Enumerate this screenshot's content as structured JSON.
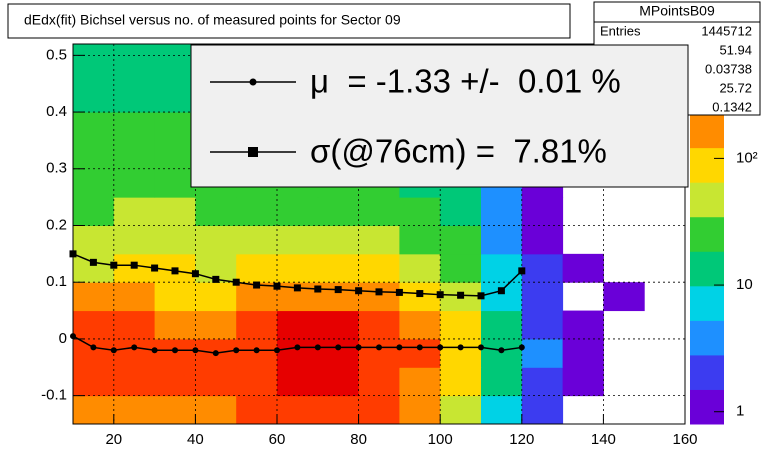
{
  "chart_data": {
    "type": "heatmap",
    "title": "dEdx(fit) Bichsel versus no. of measured points for Sector 09",
    "xlim": [
      10,
      160
    ],
    "ylim": [
      -0.15,
      0.52
    ],
    "xticks": [
      20,
      40,
      60,
      80,
      100,
      120,
      140,
      160
    ],
    "yticks": [
      -0.1,
      0,
      0.1,
      0.2,
      0.3,
      0.4,
      0.5
    ],
    "grid": true,
    "log_z": true,
    "zlim": [
      0.8,
      800
    ],
    "zticks": [
      1,
      10,
      {
        "value": 100,
        "label": "10²"
      }
    ],
    "palette": [
      "#6a00d8",
      "#3c3cf0",
      "#1e90ff",
      "#00d2e6",
      "#00c878",
      "#32cd32",
      "#c8e632",
      "#ffd700",
      "#ff8c00",
      "#ff3c00",
      "#e60000"
    ],
    "xbins": [
      10,
      20,
      30,
      40,
      50,
      60,
      70,
      80,
      90,
      100,
      110,
      120,
      130,
      140,
      150,
      160
    ],
    "ybins": [
      -0.15,
      -0.1,
      -0.05,
      0,
      0.05,
      0.1,
      0.15,
      0.2,
      0.25,
      0.3,
      0.35,
      0.4,
      0.45,
      0.52
    ],
    "z": [
      [
        150,
        200,
        180,
        200,
        250,
        350,
        350,
        250,
        150,
        60,
        8,
        2,
        0,
        0,
        0
      ],
      [
        250,
        300,
        250,
        250,
        350,
        500,
        500,
        350,
        200,
        80,
        10,
        2,
        1,
        0,
        0
      ],
      [
        300,
        300,
        250,
        250,
        400,
        600,
        600,
        400,
        250,
        90,
        12,
        3,
        1,
        0,
        0
      ],
      [
        250,
        250,
        200,
        200,
        300,
        450,
        450,
        300,
        200,
        70,
        10,
        2,
        1,
        0,
        0
      ],
      [
        150,
        150,
        120,
        120,
        150,
        200,
        200,
        150,
        100,
        50,
        8,
        2,
        0,
        1,
        0
      ],
      [
        60,
        80,
        70,
        60,
        70,
        80,
        80,
        70,
        50,
        30,
        6,
        2,
        1,
        0,
        0
      ],
      [
        40,
        50,
        50,
        40,
        40,
        40,
        40,
        35,
        30,
        20,
        5,
        1,
        0,
        0,
        0
      ],
      [
        30,
        40,
        40,
        30,
        30,
        30,
        30,
        25,
        20,
        12,
        4,
        1,
        0,
        0,
        0
      ],
      [
        25,
        30,
        30,
        25,
        25,
        25,
        25,
        20,
        15,
        10,
        3,
        1,
        0,
        0,
        0
      ],
      [
        20,
        25,
        25,
        20,
        20,
        20,
        20,
        15,
        12,
        8,
        3,
        1,
        0,
        0,
        0
      ],
      [
        20,
        20,
        20,
        18,
        18,
        15,
        15,
        12,
        10,
        6,
        2,
        0,
        0,
        0,
        0
      ],
      [
        15,
        18,
        18,
        15,
        15,
        12,
        12,
        10,
        8,
        5,
        2,
        0,
        0,
        0,
        0
      ],
      [
        15,
        15,
        15,
        12,
        12,
        10,
        10,
        8,
        6,
        4,
        1,
        0,
        0,
        0,
        0
      ]
    ],
    "x": [
      10,
      15,
      20,
      25,
      30,
      35,
      40,
      45,
      50,
      55,
      60,
      65,
      70,
      75,
      80,
      85,
      90,
      95,
      100,
      105,
      110,
      115,
      120
    ],
    "series": [
      {
        "name": "μ  = -1.33 +/-  0.01 %",
        "color": "#000000",
        "marker": "circle",
        "values": [
          0.005,
          -0.015,
          -0.02,
          -0.015,
          -0.02,
          -0.02,
          -0.02,
          -0.025,
          -0.02,
          -0.02,
          -0.02,
          -0.015,
          -0.015,
          -0.015,
          -0.015,
          -0.015,
          -0.015,
          -0.015,
          -0.015,
          -0.015,
          -0.015,
          -0.02,
          -0.015
        ]
      },
      {
        "name": "σ(@76cm) =  7.81%",
        "color": "#000000",
        "marker": "square",
        "values": [
          0.15,
          0.135,
          0.13,
          0.13,
          0.125,
          0.12,
          0.115,
          0.105,
          0.1,
          0.095,
          0.093,
          0.09,
          0.088,
          0.087,
          0.085,
          0.083,
          0.082,
          0.08,
          0.078,
          0.077,
          0.076,
          0.085,
          0.12
        ]
      }
    ],
    "stats": {
      "title": "MPointsB09",
      "entries_label": "Entries",
      "values": [
        1445712,
        51.94,
        0.03738,
        25.72,
        0.1342
      ]
    }
  }
}
